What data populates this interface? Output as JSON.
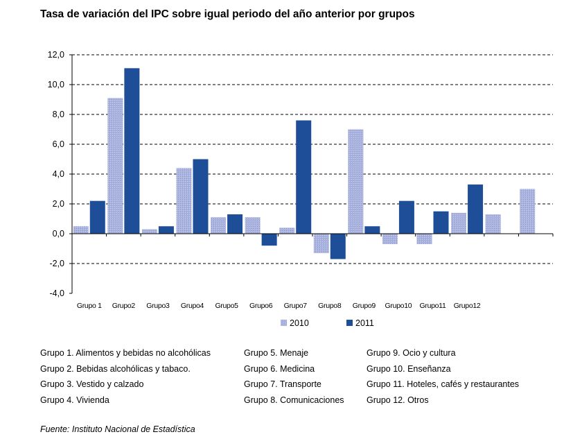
{
  "chart_data": {
    "type": "bar",
    "title": "Tasa de variación del IPC sobre igual periodo del año anterior por grupos",
    "categories": [
      "Grupo 1",
      "Grupo2",
      "Grupo3",
      "Grupo4",
      "Grupo5",
      "Grupo6",
      "Grupo7",
      "Grupo8",
      "Grupo9",
      "Grupo10",
      "Grupo11",
      "Grupo12",
      "",
      ""
    ],
    "series": [
      {
        "name": "2010",
        "color": "#a9b4df",
        "values": [
          0.5,
          9.1,
          0.3,
          4.4,
          1.1,
          1.1,
          0.4,
          -1.3,
          7.0,
          -0.7,
          -0.7,
          1.4,
          1.3,
          3.0
        ]
      },
      {
        "name": "2011",
        "color": "#1f4e99",
        "values": [
          2.2,
          11.1,
          0.5,
          5.0,
          1.3,
          -0.8,
          7.6,
          -1.7,
          0.5,
          2.2,
          1.5,
          3.3,
          null,
          null
        ]
      }
    ],
    "ylim": [
      -4.0,
      12.0
    ],
    "yticks": [
      "12,0",
      "10,0",
      "8,0",
      "6,0",
      "4,0",
      "2,0",
      "0,0",
      "-2,0",
      "-4,0"
    ],
    "ytick_values": [
      12,
      10,
      8,
      6,
      4,
      2,
      0,
      -2,
      -4
    ],
    "grid": "dashed horizontal",
    "legend_position": "bottom",
    "xlabel": "",
    "ylabel": ""
  },
  "legend_groups": {
    "col1": [
      "Grupo 1. Alimentos y bebidas no alcohólicas",
      "Grupo 2. Bebidas alcohólicas y  tabaco.",
      "Grupo 3. Vestido y calzado",
      "Grupo 4. Vivienda"
    ],
    "col2": [
      "Grupo 5. Menaje",
      "Grupo 6. Medicina",
      "Grupo 7. Transporte",
      "Grupo 8. Comunicaciones"
    ],
    "col3": [
      "Grupo 9. Ocio y cultura",
      "Grupo 10. Enseñanza",
      "Grupo 11. Hoteles, cafés y restaurantes",
      "Grupo 12. Otros"
    ]
  },
  "source": "Fuente: Instituto Nacional de Estadística"
}
